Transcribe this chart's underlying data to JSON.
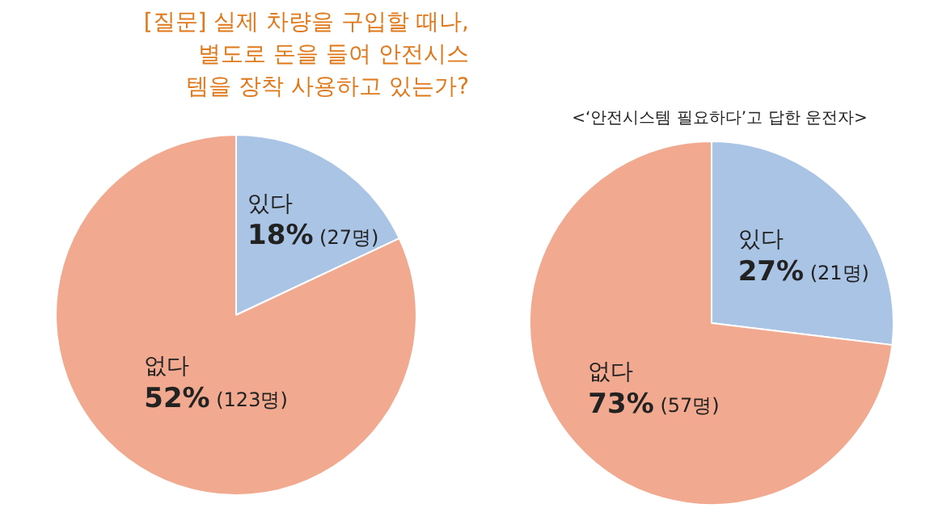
{
  "chart_data": [
    {
      "type": "pie",
      "title": "[질문] 실제 차량을 구입할 때나,\n별도로 돈을 들여 안전시스\n템을 장착 사용하고 있는가?",
      "categories": [
        "있다",
        "없다"
      ],
      "values": [
        27,
        123
      ],
      "colors": [
        "#a9c4e4",
        "#f1a98f"
      ],
      "value_labels": [
        "18% (27명)",
        "52% (123명)"
      ]
    },
    {
      "type": "pie",
      "title": "<‘안전시스템 필요하다’고 답한 운전자>",
      "categories": [
        "있다",
        "없다"
      ],
      "values": [
        21,
        57
      ],
      "colors": [
        "#a9c4e4",
        "#f1a98f"
      ],
      "value_labels": [
        "27% (21명)",
        "73% (57명)"
      ]
    }
  ]
}
